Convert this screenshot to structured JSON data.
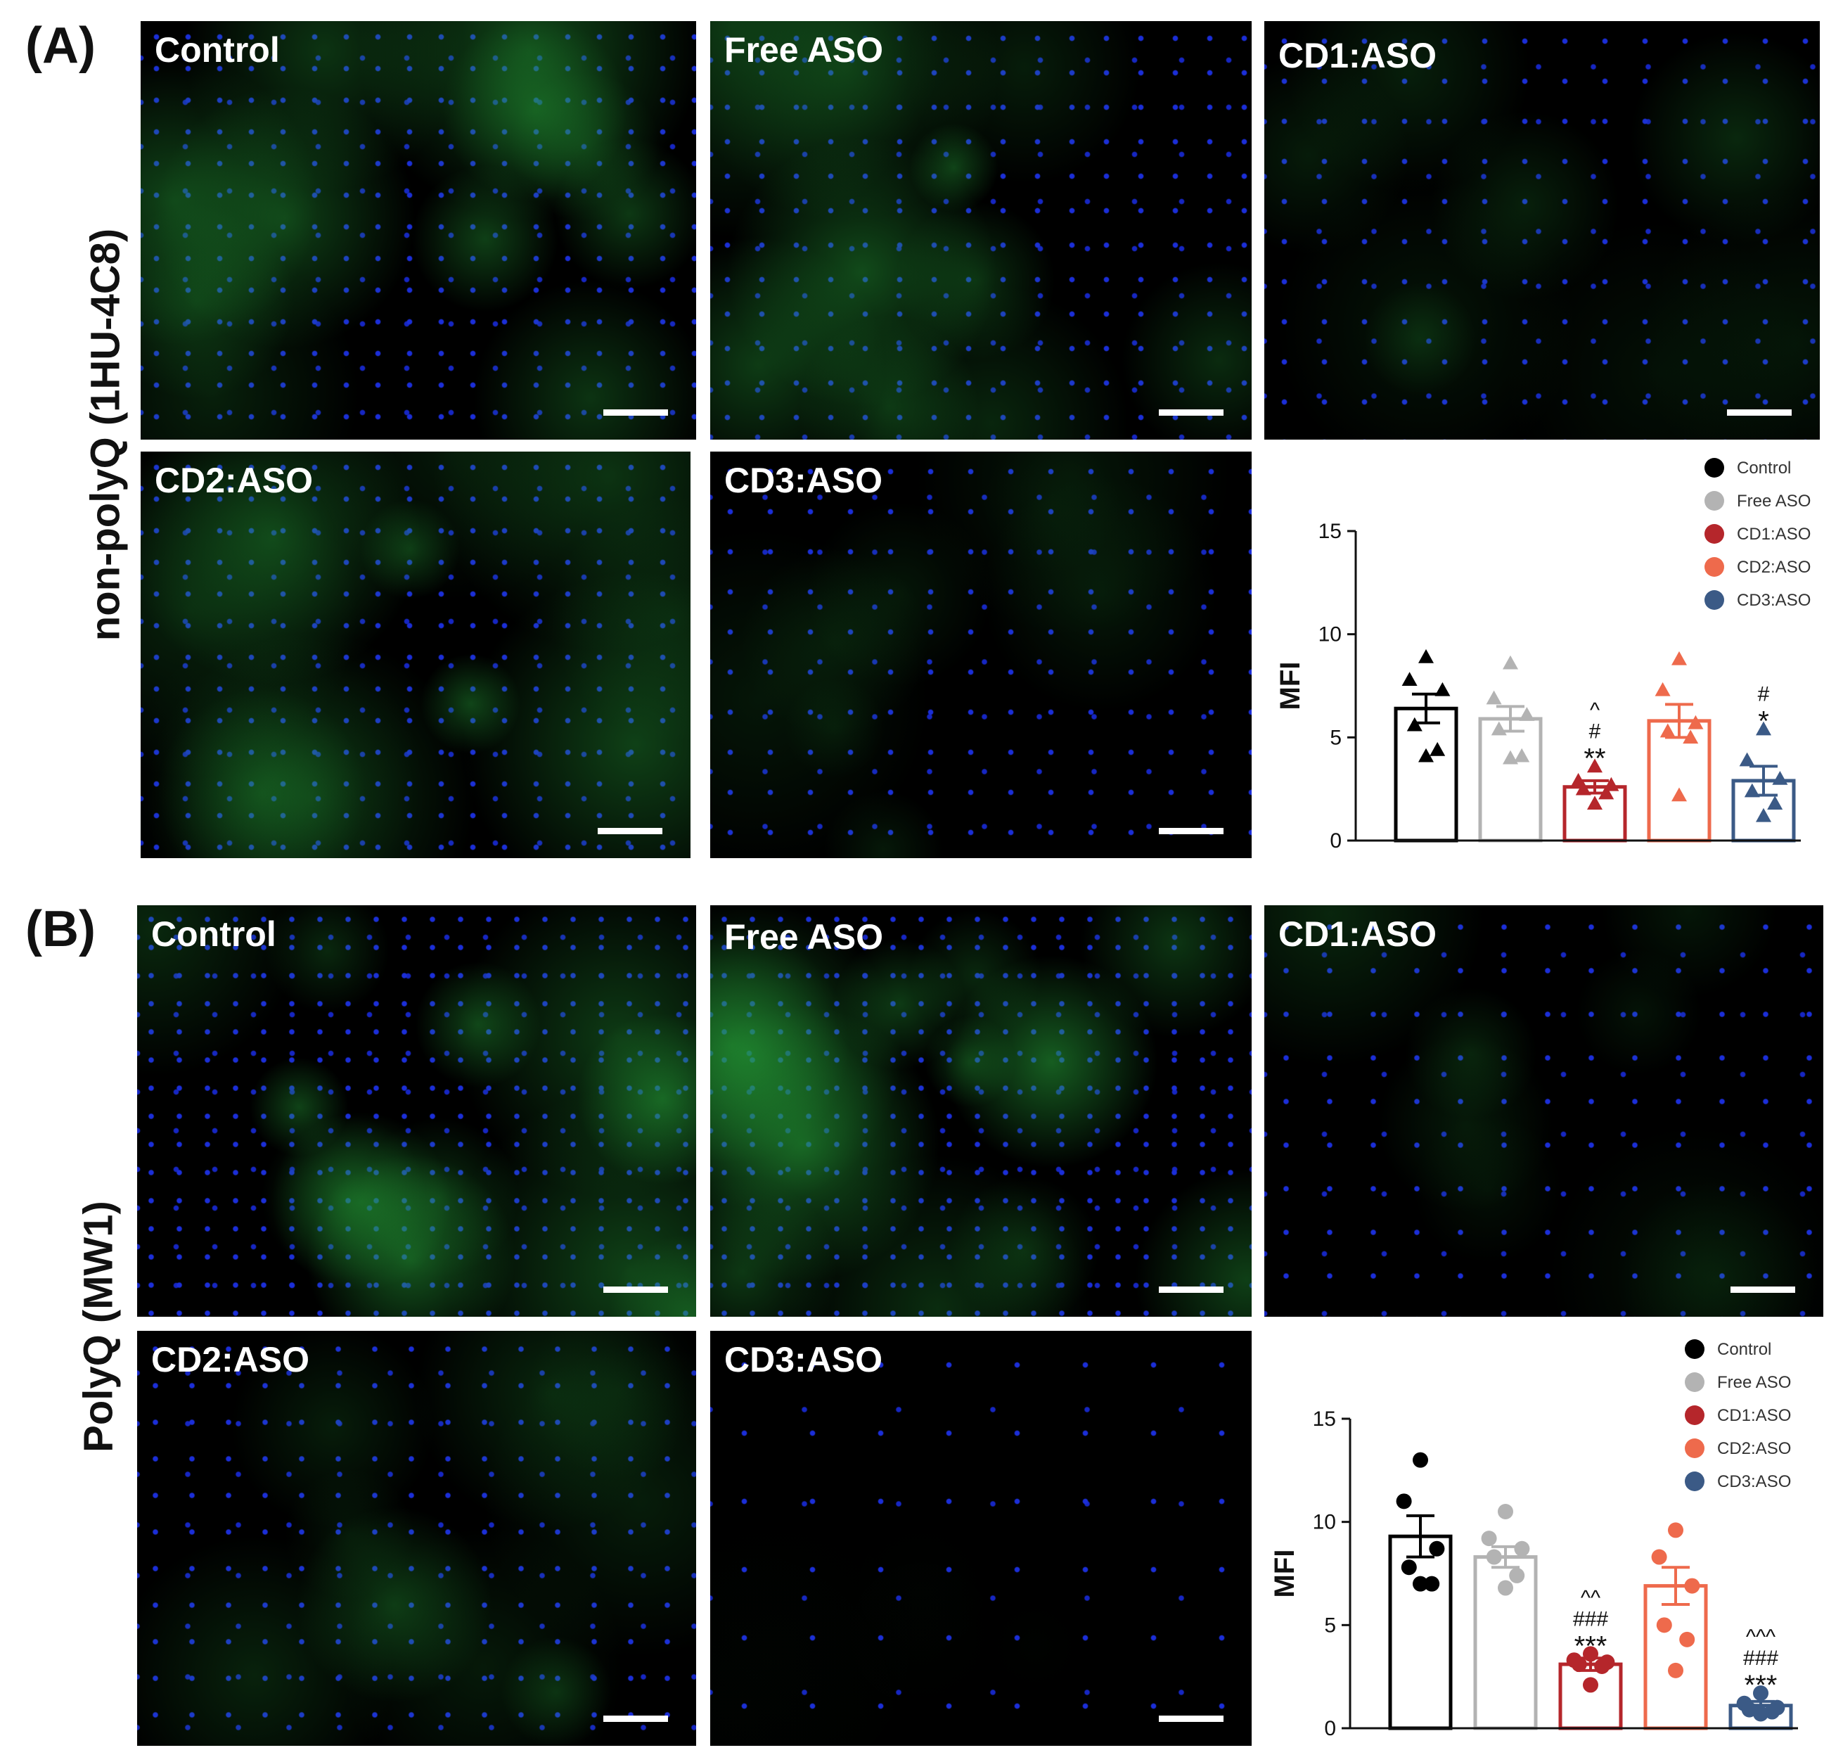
{
  "panels": [
    {
      "letter": "(A)",
      "row_label": "non-polyQ (1HU-4C8)",
      "images": [
        {
          "label": "Control",
          "intensity": 0.6,
          "density": 0.75
        },
        {
          "label": "Free ASO",
          "intensity": 0.55,
          "density": 0.7
        },
        {
          "label": "CD1:ASO",
          "intensity": 0.3,
          "density": 0.6
        },
        {
          "label": "CD2:ASO",
          "intensity": 0.5,
          "density": 0.75
        },
        {
          "label": "CD3:ASO",
          "intensity": 0.2,
          "density": 0.6
        }
      ]
    },
    {
      "letter": "(B)",
      "row_label": "PolyQ (MW1)",
      "images": [
        {
          "label": "Control",
          "intensity": 0.7,
          "density": 0.85
        },
        {
          "label": "Free ASO",
          "intensity": 0.7,
          "density": 0.85
        },
        {
          "label": "CD1:ASO",
          "intensity": 0.3,
          "density": 0.55
        },
        {
          "label": "CD2:ASO",
          "intensity": 0.45,
          "density": 0.65
        },
        {
          "label": "CD3:ASO",
          "intensity": 0.02,
          "density": 0.35
        }
      ]
    }
  ],
  "colors": {
    "Control": "#000000",
    "Free ASO": "#b3b3b3",
    "CD1:ASO": "#b5262b",
    "CD2:ASO": "#ee6a4c",
    "CD3:ASO": "#3b5a86",
    "nucleus": "#1a2bd6",
    "cytoplasm": "#2fae3c"
  },
  "chart_data": [
    {
      "type": "bar",
      "panel": "A",
      "ylabel": "MFI",
      "ylim": [
        0,
        15
      ],
      "yticks": [
        "0",
        "5",
        "10",
        "15"
      ],
      "marker": "triangle",
      "legend": [
        "Control",
        "Free ASO",
        "CD1:ASO",
        "CD2:ASO",
        "CD3:ASO"
      ],
      "legend_position": "top-right",
      "categories": [
        "Control",
        "Free ASO",
        "CD1:ASO",
        "CD2:ASO",
        "CD3:ASO"
      ],
      "values": [
        6.4,
        5.9,
        2.6,
        5.8,
        2.9
      ],
      "errors": [
        0.7,
        0.6,
        0.3,
        0.8,
        0.7
      ],
      "points": [
        [
          8.9,
          7.8,
          7.3,
          5.6,
          4.4,
          4.1
        ],
        [
          8.6,
          6.9,
          6.1,
          5.4,
          4.1,
          4.0
        ],
        [
          3.6,
          2.9,
          2.7,
          2.5,
          2.3,
          1.8
        ],
        [
          8.8,
          7.3,
          5.7,
          5.3,
          5.0,
          2.2
        ],
        [
          5.4,
          3.9,
          3.0,
          2.4,
          1.8,
          1.2
        ]
      ],
      "annotations": [
        [],
        [],
        [
          "^",
          "#",
          "**"
        ],
        [],
        [
          "#",
          "*"
        ]
      ]
    },
    {
      "type": "bar",
      "panel": "B",
      "ylabel": "MFI",
      "ylim": [
        0,
        15
      ],
      "yticks": [
        "0",
        "5",
        "10",
        "15"
      ],
      "marker": "circle",
      "legend": [
        "Control",
        "Free ASO",
        "CD1:ASO",
        "CD2:ASO",
        "CD3:ASO"
      ],
      "legend_position": "top-right",
      "categories": [
        "Control",
        "Free ASO",
        "CD1:ASO",
        "CD2:ASO",
        "CD3:ASO"
      ],
      "values": [
        9.3,
        8.3,
        3.1,
        6.9,
        1.1
      ],
      "errors": [
        1.0,
        0.5,
        0.3,
        0.9,
        0.2
      ],
      "points": [
        [
          13.0,
          11.0,
          8.7,
          7.8,
          7.0,
          7.0
        ],
        [
          10.5,
          9.2,
          8.7,
          8.3,
          7.4,
          6.8
        ],
        [
          3.6,
          3.3,
          3.2,
          3.1,
          3.0,
          2.1
        ],
        [
          9.6,
          8.3,
          6.9,
          5.0,
          4.3,
          2.8
        ],
        [
          1.7,
          1.2,
          1.0,
          0.9,
          0.8,
          0.7
        ]
      ],
      "annotations": [
        [],
        [],
        [
          "^^",
          "###",
          "***"
        ],
        [],
        [
          "^^^",
          "###",
          "***"
        ]
      ]
    }
  ]
}
